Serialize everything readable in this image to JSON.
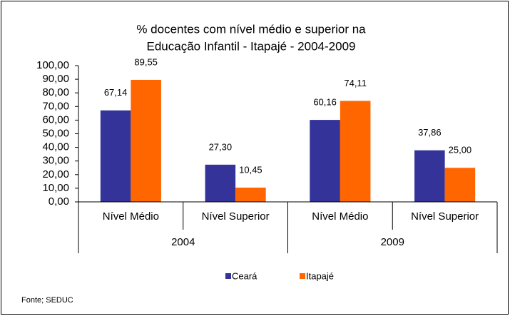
{
  "chart_data": {
    "type": "bar",
    "title": [
      "% docentes com nível médio e superior na",
      "Educação Infantil - Itapajé - 2004-2009"
    ],
    "categories": [
      "Nível Médio",
      "Nível Superior",
      "Nível Médio",
      "Nível Superior"
    ],
    "groups": [
      "2004",
      "2009"
    ],
    "series": [
      {
        "name": "Ceará",
        "color": "#333399",
        "values": [
          67.14,
          27.3,
          60.16,
          37.86
        ],
        "value_labels": [
          "67,14",
          "27,30",
          "60,16",
          "37,86"
        ]
      },
      {
        "name": "Itapajé",
        "color": "#FF6600",
        "values": [
          89.55,
          10.45,
          74.11,
          25.0
        ],
        "value_labels": [
          "89,55",
          "10,45",
          "74,11",
          "25,00"
        ]
      }
    ],
    "ylim": [
      0,
      100
    ],
    "yticks": [
      {
        "value": 0,
        "label": "0,00"
      },
      {
        "value": 10,
        "label": "10,00"
      },
      {
        "value": 20,
        "label": "20,00"
      },
      {
        "value": 30,
        "label": "30,00"
      },
      {
        "value": 40,
        "label": "40,00"
      },
      {
        "value": 50,
        "label": "50,00"
      },
      {
        "value": 60,
        "label": "60,00"
      },
      {
        "value": 70,
        "label": "70,00"
      },
      {
        "value": 80,
        "label": "80,00"
      },
      {
        "value": 90,
        "label": "90,00"
      },
      {
        "value": 100,
        "label": "100,00"
      }
    ],
    "legend": "bottom",
    "source": "Fonte; SEDUC"
  }
}
